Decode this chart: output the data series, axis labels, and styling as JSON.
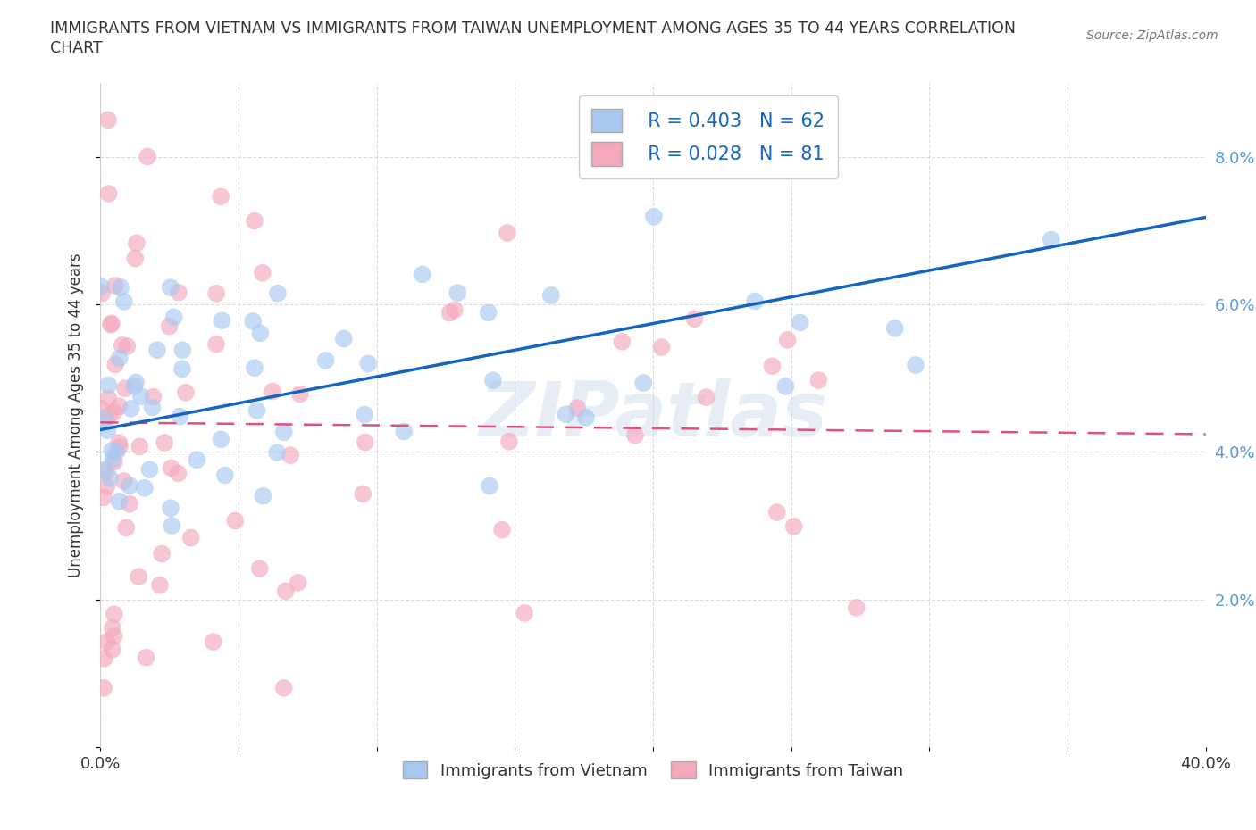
{
  "title_line1": "IMMIGRANTS FROM VIETNAM VS IMMIGRANTS FROM TAIWAN UNEMPLOYMENT AMONG AGES 35 TO 44 YEARS CORRELATION",
  "title_line2": "CHART",
  "source_text": "Source: ZipAtlas.com",
  "ylabel": "Unemployment Among Ages 35 to 44 years",
  "xlim": [
    0.0,
    0.4
  ],
  "ylim": [
    0.0,
    0.09
  ],
  "vietnam_color": "#A8C8F0",
  "taiwan_color": "#F4A8BC",
  "vietnam_line_color": "#1565C0",
  "taiwan_line_color": "#E05080",
  "R_vietnam": 0.403,
  "N_vietnam": 62,
  "R_taiwan": 0.028,
  "N_taiwan": 81,
  "watermark_text": "ZIPatlas",
  "background_color": "#FFFFFF",
  "grid_color": "#CCCCCC",
  "ytick_color": "#5B9BD5",
  "xtick_color": "#333333",
  "legend_text_color": "#1565C0",
  "title_color": "#333333",
  "source_color": "#777777",
  "ylabel_color": "#333333"
}
